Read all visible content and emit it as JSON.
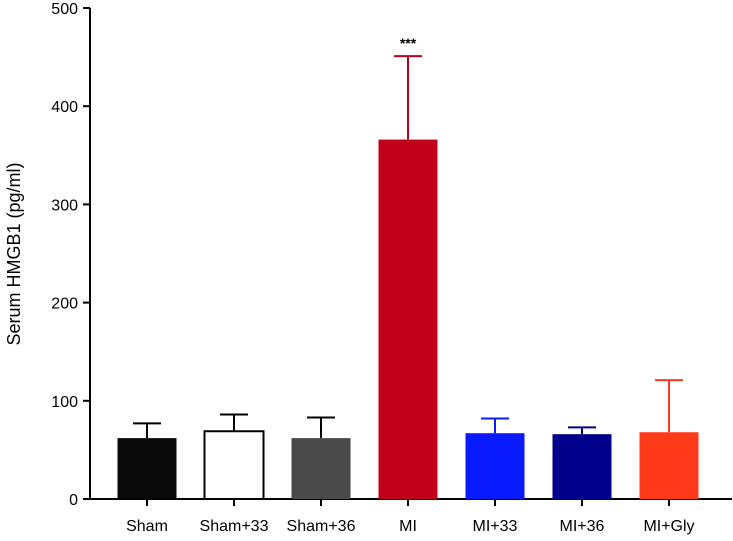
{
  "chart_data": {
    "type": "bar",
    "title": "",
    "xlabel": "",
    "ylabel": "Serum HMGB1 (pg/ml)",
    "ylim": [
      0,
      500
    ],
    "yticks": [
      "0",
      "100",
      "200",
      "300",
      "400",
      "500"
    ],
    "grid": false,
    "categories": [
      "Sham",
      "Sham+33",
      "Sham+36",
      "MI",
      "MI+33",
      "MI+36",
      "MI+Gly"
    ],
    "values": [
      62,
      69,
      62,
      366,
      67,
      66,
      68
    ],
    "errors": [
      15,
      17,
      21,
      85,
      15,
      7,
      53
    ],
    "colors": [
      "#0a0a0a",
      "#ffffff",
      "#4a4a4a",
      "#c0001a",
      "#0a1aff",
      "#00008b",
      "#ff3a1a"
    ],
    "error_colors": [
      "#000000",
      "#000000",
      "#000000",
      "#c0001a",
      "#0a1aff",
      "#00008b",
      "#ff3a1a"
    ],
    "annotations": [
      {
        "category": "MI",
        "text": "***"
      }
    ]
  }
}
